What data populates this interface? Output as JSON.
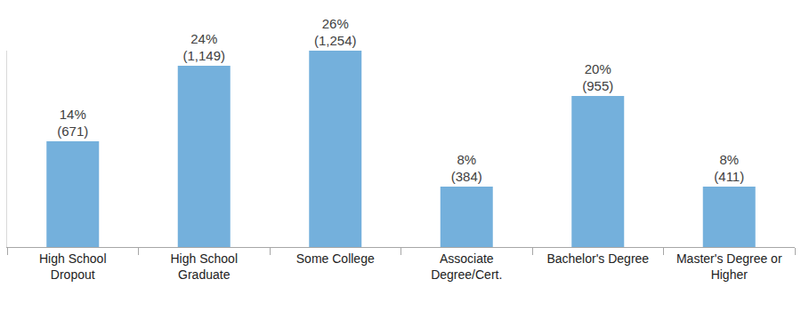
{
  "chart_data": {
    "type": "bar",
    "categories": [
      "High School\nDropout",
      "High School\nGraduate",
      "Some College",
      "Associate\nDegree/Cert.",
      "Bachelor's Degree",
      "Master's Degree or\nHigher"
    ],
    "values": [
      14,
      24,
      26,
      8,
      20,
      8
    ],
    "value_labels": [
      "14%\n(671)",
      "24%\n(1,149)",
      "26%\n(1,254)",
      "8%\n(384)",
      "20%\n(955)",
      "8%\n(411)"
    ],
    "data_labels": true,
    "color": "#74b0dc",
    "ylim": [
      0,
      26
    ],
    "tick_labels": "x",
    "grid": false
  }
}
